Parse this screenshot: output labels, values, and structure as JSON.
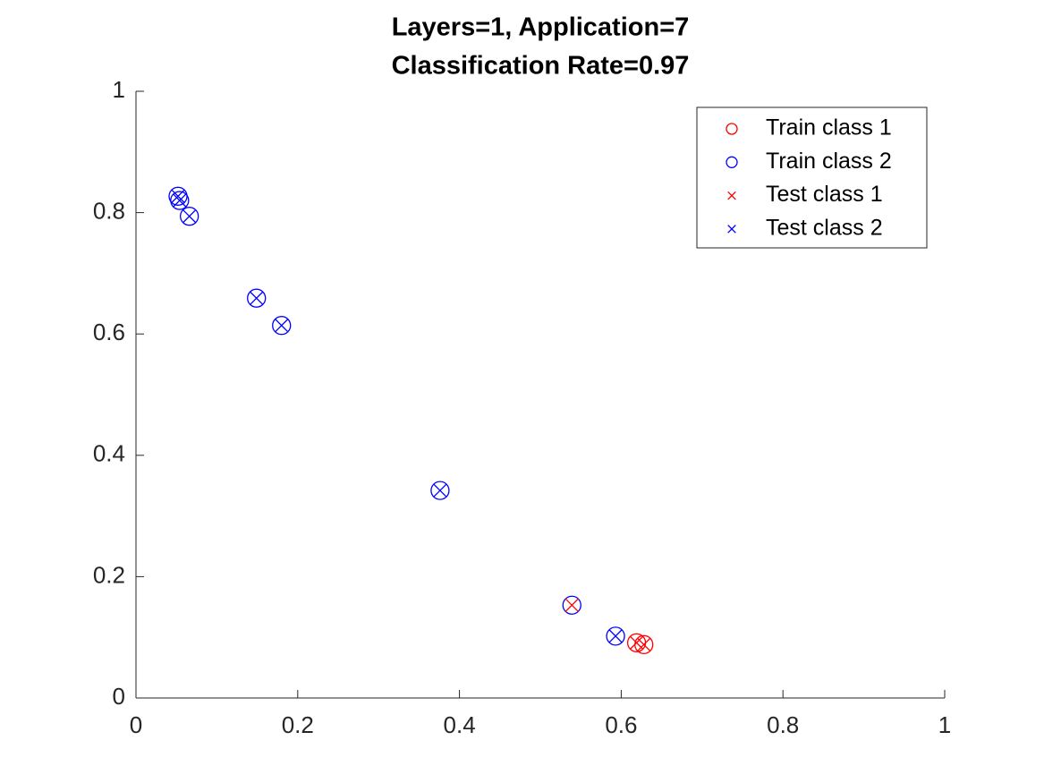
{
  "chart_data": {
    "type": "scatter",
    "title": [
      "Layers=1, Application=7",
      "Classification Rate=0.97"
    ],
    "xlim": [
      0,
      1
    ],
    "ylim": [
      0,
      1
    ],
    "xticks": [
      0,
      0.2,
      0.4,
      0.6,
      0.8,
      1
    ],
    "yticks": [
      0,
      0.2,
      0.4,
      0.6,
      0.8,
      1
    ],
    "grid": false,
    "legend": "northeast",
    "series": [
      {
        "name": "Train class 1",
        "color": "#ff0000",
        "marker": "o",
        "x": [
          0.619,
          0.628
        ],
        "values": [
          0.091,
          0.088
        ]
      },
      {
        "name": "Train class 2",
        "color": "#0000ff",
        "marker": "o",
        "x": [
          0.052,
          0.054,
          0.066,
          0.149,
          0.18,
          0.376,
          0.539,
          0.593
        ],
        "values": [
          0.827,
          0.82,
          0.794,
          0.659,
          0.614,
          0.342,
          0.153,
          0.102
        ]
      },
      {
        "name": "Test class 1",
        "color": "#ff0000",
        "marker": "x",
        "x": [
          0.539,
          0.619,
          0.628
        ],
        "values": [
          0.153,
          0.091,
          0.088
        ]
      },
      {
        "name": "Test class 2",
        "color": "#0000ff",
        "marker": "x",
        "x": [
          0.052,
          0.054,
          0.066,
          0.149,
          0.18,
          0.376,
          0.593
        ],
        "values": [
          0.827,
          0.82,
          0.794,
          0.659,
          0.614,
          0.342,
          0.102
        ]
      }
    ]
  }
}
